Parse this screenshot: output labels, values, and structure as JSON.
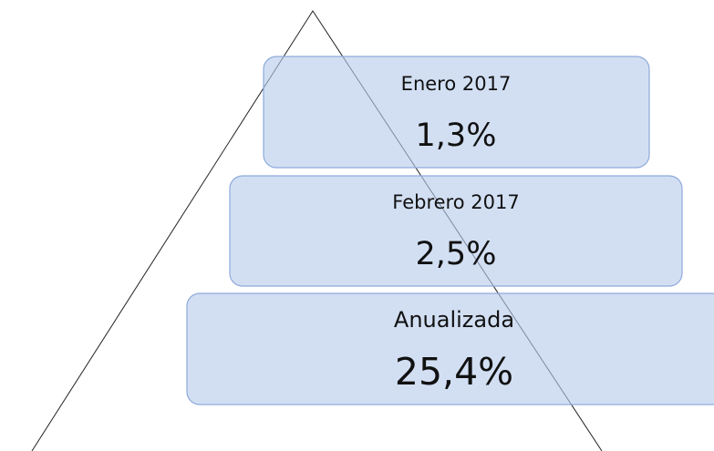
{
  "nodes": [
    {
      "label": "Enero 2017",
      "value": "1,3%"
    },
    {
      "label": "Febrero 2017",
      "value": "2,5%"
    },
    {
      "label": "Anualizada",
      "value": "25,4%"
    }
  ]
}
